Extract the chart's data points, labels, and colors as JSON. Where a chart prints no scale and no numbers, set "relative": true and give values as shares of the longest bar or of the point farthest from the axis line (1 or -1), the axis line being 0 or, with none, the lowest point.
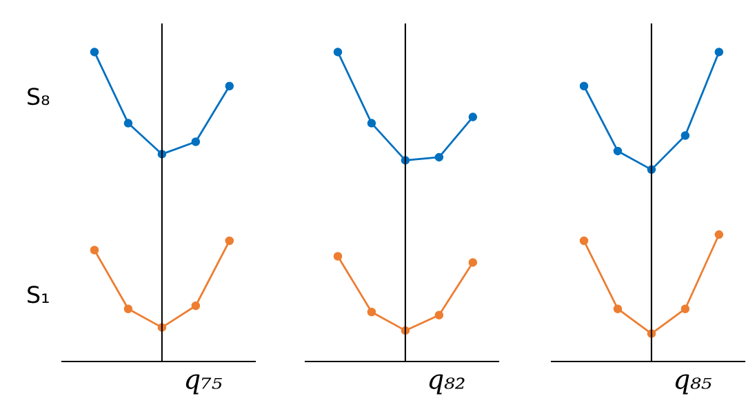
{
  "chart_data": [
    {
      "type": "line",
      "categories": [
        null,
        null,
        null,
        null,
        null
      ],
      "relative": true,
      "xlabel": "q₇₅",
      "marker": "circle",
      "series": [
        {
          "name": "S₈",
          "color": "#0070c0",
          "values": [
            1,
            0.77,
            0.67,
            0.71,
            0.89
          ]
        },
        {
          "name": "S₁",
          "color": "#ed7d31",
          "values": [
            0.36,
            0.17,
            0.11,
            0.18,
            0.39
          ]
        }
      ]
    },
    {
      "type": "line",
      "categories": [
        null,
        null,
        null,
        null,
        null
      ],
      "relative": true,
      "xlabel": "q₈₂",
      "marker": "circle",
      "series": [
        {
          "color": "#0070c0",
          "values": [
            1,
            0.77,
            0.65,
            0.66,
            0.79
          ]
        },
        {
          "color": "#ed7d31",
          "values": [
            0.34,
            0.16,
            0.1,
            0.15,
            0.32
          ]
        }
      ]
    },
    {
      "type": "line",
      "categories": [
        null,
        null,
        null,
        null,
        null
      ],
      "relative": true,
      "xlabel": "q₈₅",
      "marker": "circle",
      "series": [
        {
          "color": "#0070c0",
          "values": [
            0.89,
            0.68,
            0.62,
            0.73,
            1
          ]
        },
        {
          "color": "#ed7d31",
          "values": [
            0.39,
            0.17,
            0.09,
            0.17,
            0.41
          ]
        }
      ]
    }
  ]
}
